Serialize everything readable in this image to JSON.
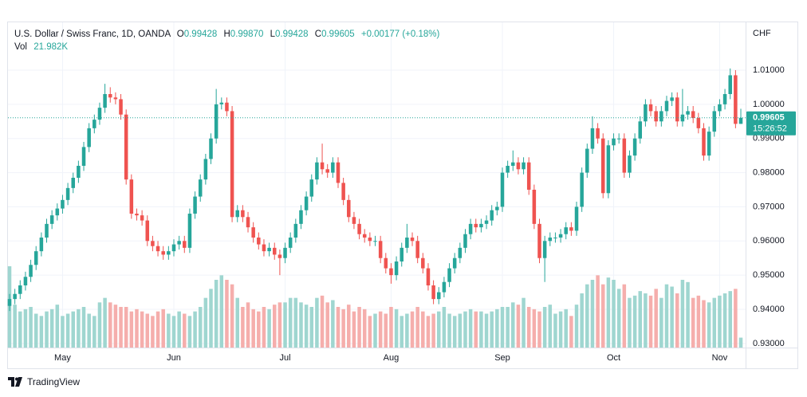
{
  "chart_data": {
    "type": "candlestick",
    "legend": {
      "symbol": "U.S. Dollar / Swiss Franc, 1D, OANDA",
      "open_label": "O",
      "open": "0.99428",
      "high_label": "H",
      "high": "0.99870",
      "low_label": "L",
      "low": "0.99428",
      "close_label": "C",
      "close": "0.99605",
      "change": "+0.00177 (+0.18%)",
      "volume_label": "Vol",
      "volume": "21.982K"
    },
    "currency": "CHF",
    "open": [
      0.941,
      0.943,
      0.9445,
      0.947,
      0.9495,
      0.953,
      0.957,
      0.961,
      0.965,
      0.9675,
      0.9695,
      0.972,
      0.9755,
      0.9785,
      0.982,
      0.9875,
      0.993,
      0.9955,
      0.999,
      1.003,
      1.002,
      1.0015,
      0.997,
      0.978,
      0.968,
      0.9675,
      0.966,
      0.96,
      0.9585,
      0.957,
      0.956,
      0.957,
      0.959,
      0.96,
      0.958,
      0.968,
      0.973,
      0.978,
      0.984,
      0.99,
      1.0,
      1.0005,
      0.998,
      0.967,
      0.969,
      0.967,
      0.964,
      0.961,
      0.959,
      0.957,
      0.958,
      0.956,
      0.955,
      0.958,
      0.961,
      0.965,
      0.969,
      0.973,
      0.978,
      0.983,
      0.981,
      0.98,
      0.983,
      0.977,
      0.972,
      0.967,
      0.965,
      0.962,
      0.961,
      0.96,
      0.96,
      0.955,
      0.952,
      0.95,
      0.954,
      0.958,
      0.961,
      0.96,
      0.955,
      0.952,
      0.947,
      0.943,
      0.945,
      0.948,
      0.952,
      0.955,
      0.958,
      0.962,
      0.965,
      0.964,
      0.965,
      0.966,
      0.969,
      0.97,
      0.98,
      0.982,
      0.983,
      0.981,
      0.983,
      0.975,
      0.965,
      0.955,
      0.96,
      0.961,
      0.961,
      0.962,
      0.964,
      0.963,
      0.97,
      0.98,
      0.987,
      0.993,
      0.99,
      0.974,
      0.988,
      0.99,
      0.99,
      0.98,
      0.985,
      0.99,
      0.995,
      1.0,
      0.998,
      0.995,
      0.998,
      1.001,
      1.002,
      0.995,
      0.997,
      0.998,
      0.996,
      0.993,
      0.985,
      0.992,
      0.998,
      1.0,
      1.003,
      1.0085,
      0.99428
    ],
    "high": [
      0.9445,
      0.946,
      0.9485,
      0.951,
      0.9545,
      0.9585,
      0.9625,
      0.9665,
      0.969,
      0.971,
      0.9735,
      0.977,
      0.98,
      0.9835,
      0.989,
      0.9945,
      0.997,
      1.0005,
      1.006,
      1.005,
      1.0035,
      1.003,
      0.9985,
      0.9795,
      0.9695,
      0.969,
      0.9675,
      0.9615,
      0.96,
      0.9585,
      0.9585,
      0.9605,
      0.9615,
      0.9615,
      0.9695,
      0.9745,
      0.9795,
      0.9855,
      0.9915,
      1.0045,
      1.002,
      1.002,
      0.9995,
      0.9705,
      0.9705,
      0.9685,
      0.9655,
      0.9625,
      0.9605,
      0.9595,
      0.9595,
      0.9575,
      0.9595,
      0.9625,
      0.9665,
      0.9705,
      0.9745,
      0.9795,
      0.9845,
      0.9885,
      0.9825,
      0.9845,
      0.9845,
      0.9785,
      0.9735,
      0.9685,
      0.9665,
      0.9635,
      0.9625,
      0.9615,
      0.9615,
      0.9565,
      0.9535,
      0.9555,
      0.9595,
      0.965,
      0.9625,
      0.9615,
      0.9565,
      0.9535,
      0.9485,
      0.9465,
      0.9495,
      0.9535,
      0.9565,
      0.9595,
      0.9635,
      0.9665,
      0.9665,
      0.9665,
      0.9675,
      0.9705,
      0.9715,
      0.9815,
      0.9835,
      0.9865,
      0.9845,
      0.9845,
      0.9845,
      0.9765,
      0.9665,
      0.9615,
      0.9625,
      0.9625,
      0.9635,
      0.9655,
      0.9655,
      0.9715,
      0.9815,
      0.9885,
      0.9965,
      0.9945,
      0.9915,
      0.9895,
      0.9915,
      0.9915,
      0.9915,
      0.9865,
      0.9915,
      0.9965,
      1.0015,
      1.0015,
      0.9995,
      0.9995,
      1.0025,
      1.0035,
      1.0035,
      1.0045,
      0.9995,
      0.9995,
      0.9975,
      0.9945,
      0.9935,
      0.9995,
      1.0015,
      1.0045,
      1.0105,
      1.01,
      0.9987
    ],
    "low": [
      0.9395,
      0.9415,
      0.943,
      0.9455,
      0.948,
      0.9515,
      0.9555,
      0.9595,
      0.9635,
      0.966,
      0.968,
      0.9705,
      0.974,
      0.977,
      0.9805,
      0.986,
      0.9915,
      0.994,
      0.9975,
      1.0005,
      1.0,
      0.9955,
      0.9765,
      0.9665,
      0.966,
      0.9645,
      0.9585,
      0.957,
      0.9555,
      0.9545,
      0.9545,
      0.9555,
      0.9575,
      0.9565,
      0.9565,
      0.9665,
      0.9715,
      0.9765,
      0.9825,
      0.9885,
      0.9985,
      0.9965,
      0.9655,
      0.9655,
      0.9655,
      0.9625,
      0.9595,
      0.9575,
      0.9555,
      0.9555,
      0.9545,
      0.95,
      0.9535,
      0.9565,
      0.9595,
      0.9635,
      0.9675,
      0.9715,
      0.9765,
      0.9795,
      0.9785,
      0.9785,
      0.9755,
      0.9705,
      0.9655,
      0.9635,
      0.9605,
      0.9595,
      0.9585,
      0.9585,
      0.9535,
      0.9505,
      0.9475,
      0.9485,
      0.9525,
      0.9565,
      0.9585,
      0.9535,
      0.9505,
      0.9455,
      0.9415,
      0.9415,
      0.9435,
      0.9465,
      0.9505,
      0.9535,
      0.9565,
      0.9605,
      0.9625,
      0.9625,
      0.9635,
      0.9645,
      0.9675,
      0.9685,
      0.9785,
      0.9805,
      0.9795,
      0.9795,
      0.9735,
      0.9635,
      0.9535,
      0.948,
      0.9585,
      0.9595,
      0.9595,
      0.9605,
      0.9615,
      0.9615,
      0.9685,
      0.9785,
      0.9855,
      0.9885,
      0.9725,
      0.9725,
      0.9865,
      0.9885,
      0.9785,
      0.9785,
      0.9835,
      0.9885,
      0.9935,
      0.9965,
      0.9935,
      0.9935,
      0.9965,
      0.9995,
      0.9935,
      0.9935,
      0.9955,
      0.9945,
      0.9915,
      0.9835,
      0.9835,
      0.9905,
      0.9965,
      0.9985,
      1.0015,
      0.993,
      0.99428
    ],
    "close": [
      0.943,
      0.9445,
      0.947,
      0.9495,
      0.953,
      0.957,
      0.961,
      0.965,
      0.9675,
      0.9695,
      0.972,
      0.9755,
      0.9785,
      0.982,
      0.9875,
      0.993,
      0.9955,
      0.999,
      1.003,
      1.002,
      1.0015,
      0.997,
      0.978,
      0.968,
      0.9675,
      0.966,
      0.96,
      0.9585,
      0.957,
      0.956,
      0.957,
      0.959,
      0.96,
      0.958,
      0.968,
      0.973,
      0.978,
      0.984,
      0.99,
      1.0,
      1.0005,
      0.998,
      0.967,
      0.969,
      0.967,
      0.964,
      0.961,
      0.959,
      0.957,
      0.958,
      0.956,
      0.955,
      0.958,
      0.961,
      0.965,
      0.969,
      0.973,
      0.978,
      0.983,
      0.981,
      0.98,
      0.983,
      0.977,
      0.972,
      0.967,
      0.965,
      0.962,
      0.961,
      0.96,
      0.96,
      0.955,
      0.952,
      0.95,
      0.954,
      0.958,
      0.961,
      0.96,
      0.955,
      0.952,
      0.947,
      0.943,
      0.945,
      0.948,
      0.952,
      0.955,
      0.958,
      0.962,
      0.965,
      0.964,
      0.965,
      0.966,
      0.969,
      0.97,
      0.98,
      0.982,
      0.983,
      0.981,
      0.983,
      0.975,
      0.965,
      0.955,
      0.96,
      0.961,
      0.961,
      0.962,
      0.964,
      0.963,
      0.97,
      0.98,
      0.987,
      0.993,
      0.99,
      0.974,
      0.988,
      0.99,
      0.99,
      0.98,
      0.985,
      0.99,
      0.995,
      1.0,
      0.998,
      0.995,
      0.998,
      1.001,
      1.002,
      0.995,
      0.997,
      0.998,
      0.996,
      0.993,
      0.985,
      0.992,
      0.998,
      1.0,
      1.003,
      1.0085,
      0.99428,
      0.99605
    ],
    "volume": [
      180,
      95,
      80,
      85,
      90,
      75,
      70,
      80,
      85,
      95,
      70,
      75,
      80,
      85,
      90,
      75,
      70,
      100,
      110,
      100,
      95,
      90,
      90,
      80,
      85,
      80,
      75,
      70,
      80,
      85,
      75,
      70,
      80,
      75,
      70,
      80,
      90,
      110,
      130,
      150,
      160,
      150,
      140,
      110,
      90,
      100,
      85,
      80,
      90,
      85,
      95,
      100,
      100,
      110,
      110,
      100,
      95,
      90,
      110,
      115,
      100,
      105,
      90,
      85,
      95,
      80,
      90,
      85,
      70,
      75,
      80,
      75,
      90,
      85,
      70,
      75,
      80,
      90,
      80,
      70,
      75,
      80,
      90,
      75,
      70,
      75,
      80,
      85,
      80,
      80,
      75,
      80,
      85,
      90,
      90,
      100,
      95,
      110,
      90,
      85,
      80,
      90,
      95,
      75,
      80,
      85,
      70,
      95,
      120,
      140,
      150,
      160,
      140,
      155,
      150,
      130,
      140,
      110,
      115,
      125,
      120,
      115,
      130,
      110,
      140,
      135,
      120,
      150,
      145,
      110,
      115,
      105,
      100,
      110,
      115,
      120,
      125,
      130,
      21.982
    ],
    "volume_ylim": [
      0,
      180
    ],
    "colors": {
      "up": "#26a69a",
      "down": "#ef5350",
      "volume_up": "#9fd6d0",
      "volume_down": "#f5aeac"
    },
    "ylim": [
      0.9288,
      1.024
    ],
    "yticks": [
      {
        "value": 0.93,
        "label": "0.93000"
      },
      {
        "value": 0.94,
        "label": "0.94000"
      },
      {
        "value": 0.95,
        "label": "0.95000"
      },
      {
        "value": 0.96,
        "label": "0.96000"
      },
      {
        "value": 0.97,
        "label": "0.97000"
      },
      {
        "value": 0.98,
        "label": "0.98000"
      },
      {
        "value": 0.99,
        "label": "0.99000"
      },
      {
        "value": 1.0,
        "label": "1.00000"
      },
      {
        "value": 1.01,
        "label": "1.01000"
      }
    ],
    "xlim": [
      -0.3,
      138.9
    ],
    "xticks": [
      {
        "value": 10,
        "label": "May"
      },
      {
        "value": 31,
        "label": "Jun"
      },
      {
        "value": 52,
        "label": "Jul"
      },
      {
        "value": 72,
        "label": "Aug"
      },
      {
        "value": 93,
        "label": "Sep"
      },
      {
        "value": 114,
        "label": "Oct"
      },
      {
        "value": 134,
        "label": "Nov"
      }
    ],
    "grid": true,
    "last_price": {
      "value": 0.99605,
      "countdown": "15:26:52"
    }
  },
  "watermark": "TradingView"
}
